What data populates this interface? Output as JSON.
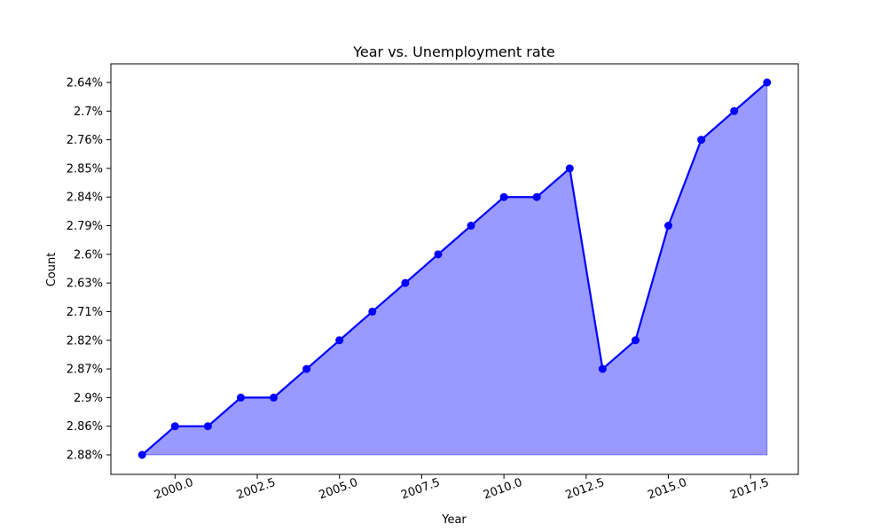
{
  "chart_data": {
    "type": "area",
    "title": "Year vs. Unemployment rate",
    "xlabel": "Year",
    "ylabel": "Count",
    "x": [
      1999,
      2000,
      2001,
      2002,
      2003,
      2004,
      2005,
      2006,
      2007,
      2008,
      2009,
      2010,
      2011,
      2012,
      2013,
      2014,
      2015,
      2016,
      2017,
      2018
    ],
    "y_categories": [
      "2.88%",
      "2.86%",
      "2.9%",
      "2.87%",
      "2.82%",
      "2.71%",
      "2.63%",
      "2.6%",
      "2.79%",
      "2.84%",
      "2.85%",
      "2.76%",
      "2.7%",
      "2.64%"
    ],
    "values": [
      "2.88%",
      "2.86%",
      "2.86%",
      "2.9%",
      "2.9%",
      "2.87%",
      "2.82%",
      "2.71%",
      "2.63%",
      "2.6%",
      "2.79%",
      "2.84%",
      "2.84%",
      "2.85%",
      "2.87%",
      "2.82%",
      "2.79%",
      "2.76%",
      "2.7%",
      "2.64%"
    ],
    "xticks": [
      "2000.0",
      "2002.5",
      "2005.0",
      "2007.5",
      "2010.0",
      "2012.5",
      "2015.0",
      "2017.5"
    ],
    "xlim": [
      1998.05,
      2018.95
    ],
    "grid": false,
    "colors": {
      "line": "#0000ff",
      "fill": "#9999ff"
    }
  }
}
